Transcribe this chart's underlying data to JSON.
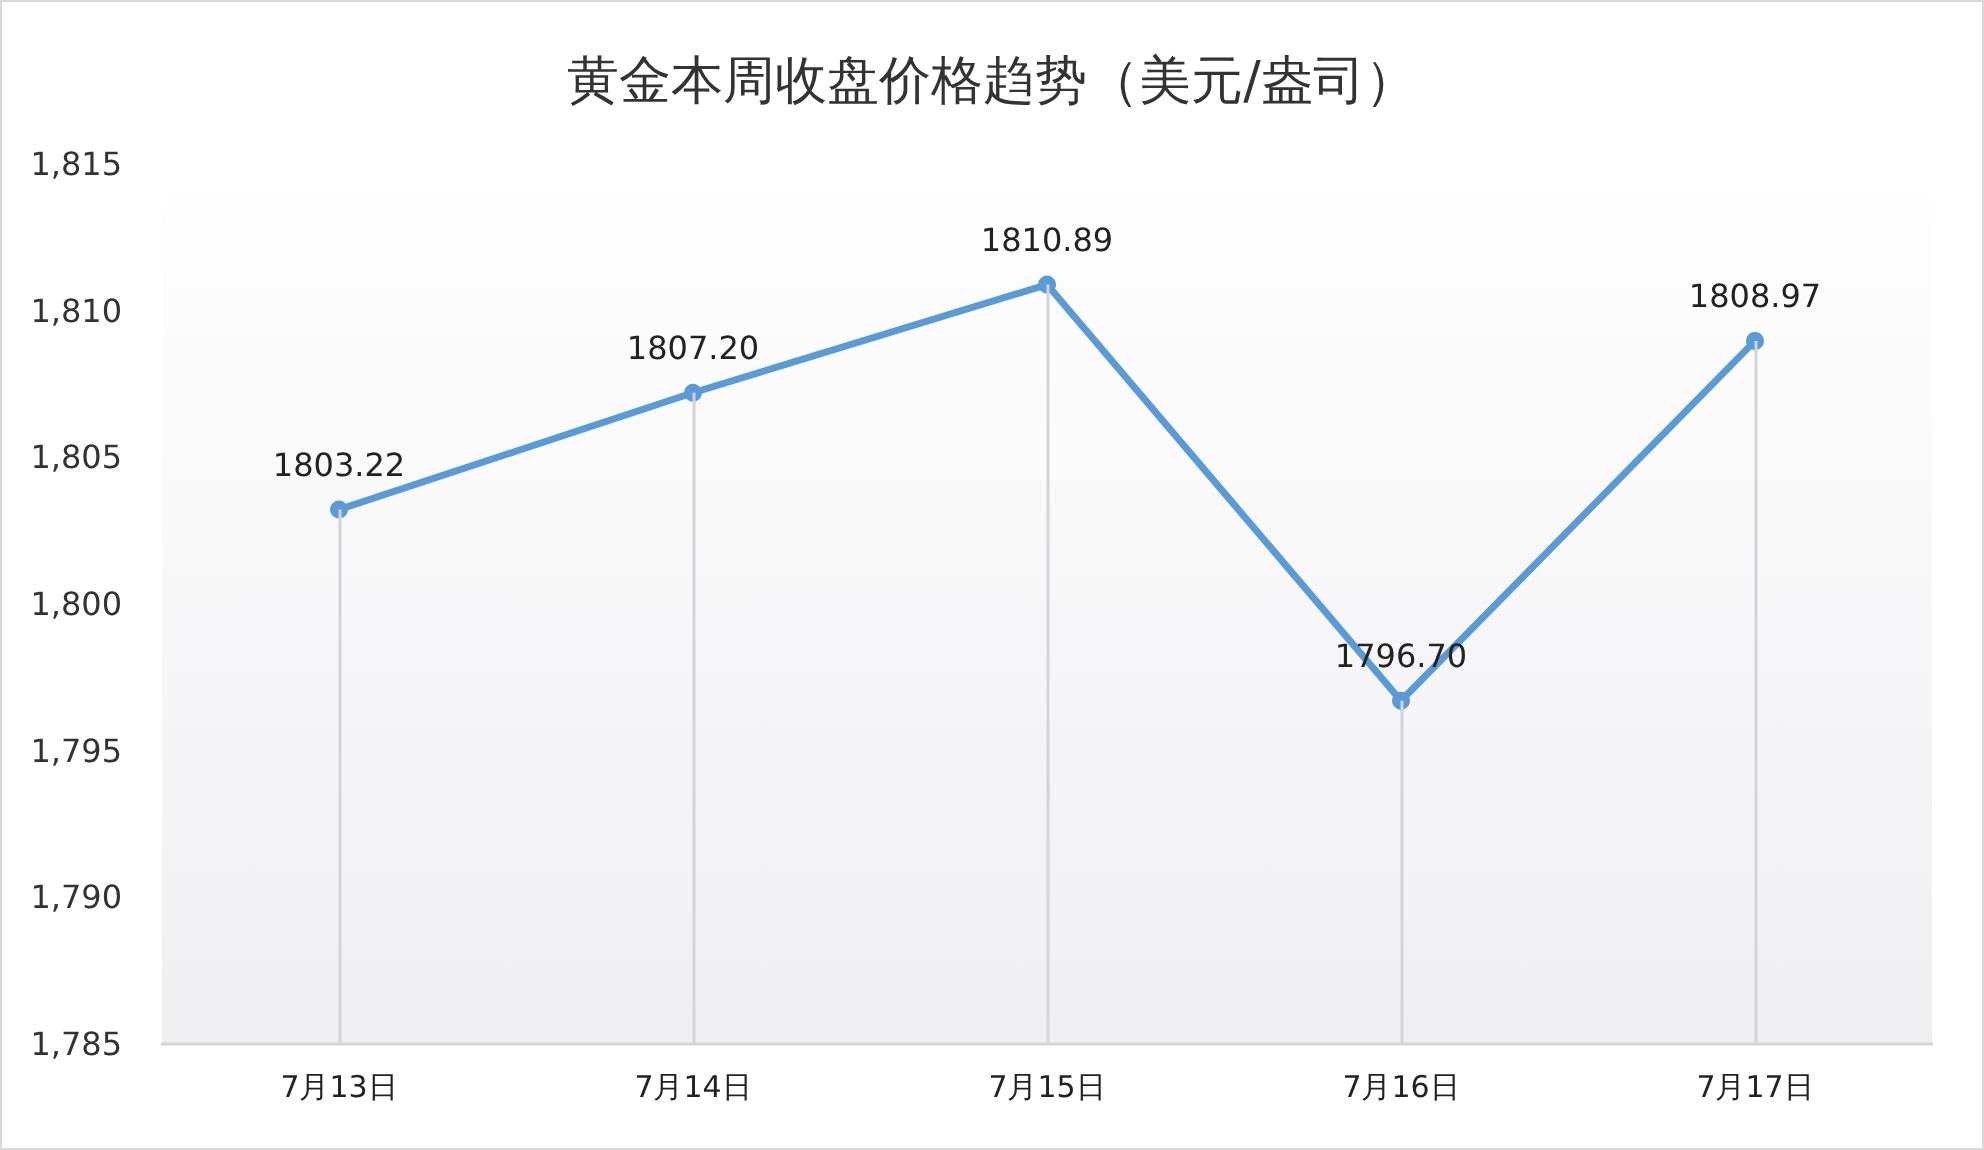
{
  "chart_data": {
    "type": "line",
    "title": "黄金本周收盘价格趋势（美元/盎司）",
    "categories": [
      "7月13日",
      "7月14日",
      "7月15日",
      "7月16日",
      "7月17日"
    ],
    "series": [
      {
        "color": "#5b9bd5",
        "values": [
          1803.22,
          1807.2,
          1810.89,
          1796.7,
          1808.97
        ],
        "value_labels": [
          "1803.22",
          "1807.20",
          "1810.89",
          "1796.70",
          "1808.97"
        ]
      }
    ],
    "ylim": [
      1785,
      1815
    ],
    "yticks": [
      {
        "value": 1785,
        "label": "1,785"
      },
      {
        "value": 1790,
        "label": "1,790"
      },
      {
        "value": 1795,
        "label": "1,795"
      },
      {
        "value": 1800,
        "label": "1,800"
      },
      {
        "value": 1805,
        "label": "1,805"
      },
      {
        "value": 1810,
        "label": "1,810"
      },
      {
        "value": 1815,
        "label": "1,815"
      }
    ],
    "grid": "x",
    "marker": "circle",
    "line_style": "solid"
  }
}
